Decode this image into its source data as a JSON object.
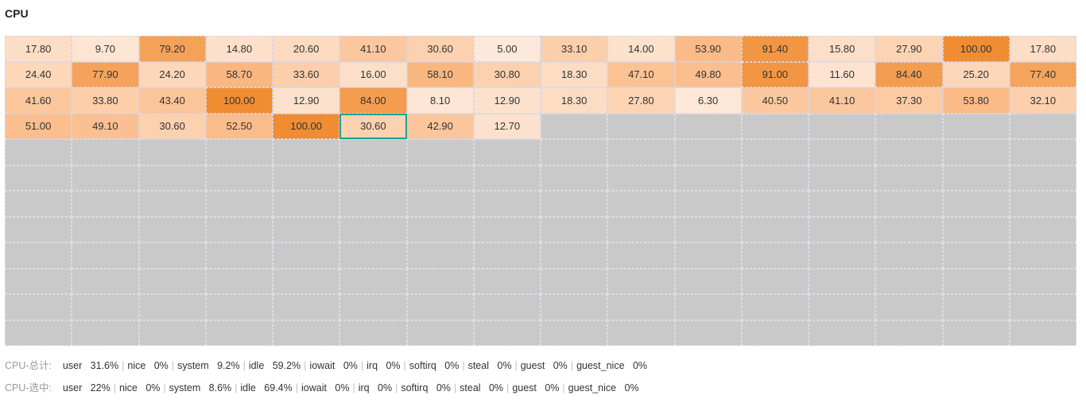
{
  "title": "CPU",
  "colors": {
    "high": "#f08d33",
    "mid": "#fbbf8f",
    "low": "#fdeee3",
    "empty": "#c9c9c9",
    "selected_border": "#1f9e9a"
  },
  "grid": {
    "columns": 16,
    "rows": 12,
    "selected_index": 53,
    "values": [
      "17.80",
      "9.70",
      "79.20",
      "14.80",
      "20.60",
      "41.10",
      "30.60",
      "5.00",
      "33.10",
      "14.00",
      "53.90",
      "91.40",
      "15.80",
      "27.90",
      "100.00",
      "17.80",
      "24.40",
      "77.90",
      "24.20",
      "58.70",
      "33.60",
      "16.00",
      "58.10",
      "30.80",
      "18.30",
      "47.10",
      "49.80",
      "91.00",
      "11.60",
      "84.40",
      "25.20",
      "77.40",
      "41.60",
      "33.80",
      "43.40",
      "100.00",
      "12.90",
      "84.00",
      "8.10",
      "12.90",
      "18.30",
      "27.80",
      "6.30",
      "40.50",
      "41.10",
      "37.30",
      "53.80",
      "32.10",
      "51.00",
      "49.10",
      "30.60",
      "52.50",
      "100.00",
      "30.60",
      "42.90",
      "12.70"
    ]
  },
  "stats_total": {
    "label": "CPU-总计:",
    "items": [
      {
        "name": "user",
        "value": "31.6%"
      },
      {
        "name": "nice",
        "value": "0%"
      },
      {
        "name": "system",
        "value": "9.2%"
      },
      {
        "name": "idle",
        "value": "59.2%"
      },
      {
        "name": "iowait",
        "value": "0%"
      },
      {
        "name": "irq",
        "value": "0%"
      },
      {
        "name": "softirq",
        "value": "0%"
      },
      {
        "name": "steal",
        "value": "0%"
      },
      {
        "name": "guest",
        "value": "0%"
      },
      {
        "name": "guest_nice",
        "value": "0%"
      }
    ]
  },
  "stats_selected": {
    "label": "CPU-选中:",
    "items": [
      {
        "name": "user",
        "value": "22%"
      },
      {
        "name": "nice",
        "value": "0%"
      },
      {
        "name": "system",
        "value": "8.6%"
      },
      {
        "name": "idle",
        "value": "69.4%"
      },
      {
        "name": "iowait",
        "value": "0%"
      },
      {
        "name": "irq",
        "value": "0%"
      },
      {
        "name": "softirq",
        "value": "0%"
      },
      {
        "name": "steal",
        "value": "0%"
      },
      {
        "name": "guest",
        "value": "0%"
      },
      {
        "name": "guest_nice",
        "value": "0%"
      }
    ]
  }
}
